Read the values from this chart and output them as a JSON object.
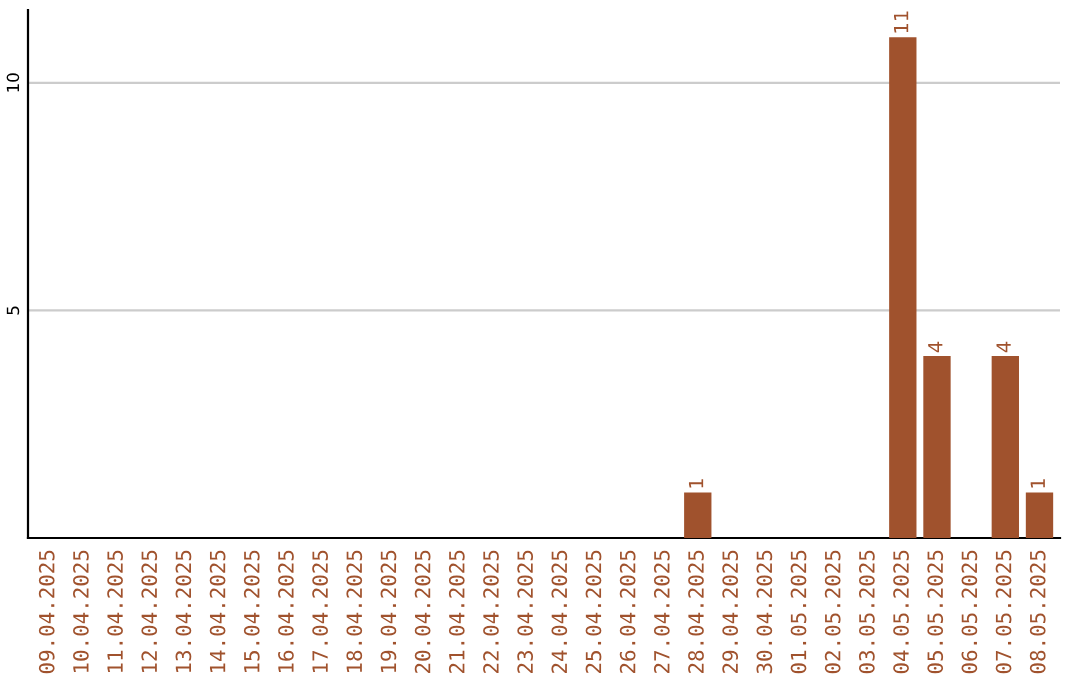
{
  "chart_data": {
    "type": "bar",
    "categories": [
      "09.04.2025",
      "10.04.2025",
      "11.04.2025",
      "12.04.2025",
      "13.04.2025",
      "14.04.2025",
      "15.04.2025",
      "16.04.2025",
      "17.04.2025",
      "18.04.2025",
      "19.04.2025",
      "20.04.2025",
      "21.04.2025",
      "22.04.2025",
      "23.04.2025",
      "24.04.2025",
      "25.04.2025",
      "26.04.2025",
      "27.04.2025",
      "28.04.2025",
      "29.04.2025",
      "30.04.2025",
      "01.05.2025",
      "02.05.2025",
      "03.05.2025",
      "04.05.2025",
      "05.05.2025",
      "06.05.2025",
      "07.05.2025",
      "08.05.2025"
    ],
    "values": [
      0,
      0,
      0,
      0,
      0,
      0,
      0,
      0,
      0,
      0,
      0,
      0,
      0,
      0,
      0,
      0,
      0,
      0,
      0,
      1,
      0,
      0,
      0,
      0,
      0,
      11,
      4,
      0,
      4,
      1
    ],
    "value_labels": [
      null,
      null,
      null,
      null,
      null,
      null,
      null,
      null,
      null,
      null,
      null,
      null,
      null,
      null,
      null,
      null,
      null,
      null,
      null,
      "1",
      null,
      null,
      null,
      null,
      null,
      "11",
      "4",
      null,
      "4",
      "1"
    ],
    "color": "#a0522d",
    "ylim": [
      0,
      11.6
    ],
    "yticks": [
      5,
      10
    ],
    "grid": "y"
  }
}
